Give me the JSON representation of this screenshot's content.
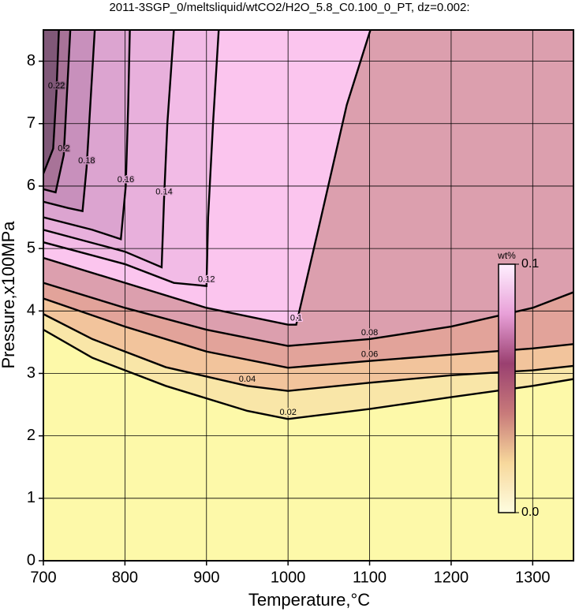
{
  "chart_data": {
    "type": "contour",
    "title": "2011-3SGP_0/meltsliquid/wtCO2/H2O_5.8_C0.100_0_PT, dz=0.002:",
    "xlabel": "Temperature,°C",
    "ylabel": "Pressure,x100MPa",
    "xlim": [
      700,
      1350
    ],
    "ylim": [
      0,
      8.5
    ],
    "xticks": [
      700,
      800,
      900,
      1000,
      1100,
      1200,
      1300
    ],
    "yticks": [
      0,
      1,
      2,
      3,
      4,
      5,
      6,
      7,
      8
    ],
    "grid": true,
    "base_color": "#fdf9a9",
    "contours": [
      {
        "level": 0.02,
        "fill": "#f9e6a8",
        "x": [
          700,
          760,
          800,
          850,
          900,
          950,
          1000,
          1050,
          1100,
          1200,
          1300,
          1350
        ],
        "y": [
          3.7,
          3.25,
          3.05,
          2.8,
          2.6,
          2.4,
          2.27,
          2.35,
          2.43,
          2.62,
          2.8,
          2.91
        ]
      },
      {
        "level": 0.04,
        "fill": "#f2c49c",
        "x": [
          700,
          760,
          800,
          850,
          900,
          950,
          1000,
          1100,
          1200,
          1300,
          1350
        ],
        "y": [
          3.95,
          3.55,
          3.35,
          3.1,
          2.95,
          2.8,
          2.72,
          2.85,
          2.97,
          3.05,
          3.12
        ]
      },
      {
        "level": 0.06,
        "fill": "#e2a39a",
        "x": [
          700,
          800,
          900,
          1000,
          1100,
          1200,
          1300,
          1350
        ],
        "y": [
          4.2,
          3.75,
          3.35,
          3.09,
          3.2,
          3.3,
          3.4,
          3.47
        ]
      },
      {
        "level": 0.08,
        "fill": "#dc9fae",
        "x": [
          700,
          800,
          900,
          1000,
          1100,
          1200,
          1300,
          1350
        ],
        "y": [
          4.45,
          4.05,
          3.7,
          3.44,
          3.55,
          3.75,
          4.05,
          4.3
        ]
      },
      {
        "level": 0.1,
        "fill": "#fbc5ee",
        "x": [
          700,
          800,
          900,
          1000,
          1010,
          1040,
          1072,
          1101
        ],
        "y": [
          4.85,
          4.45,
          4.05,
          3.78,
          3.78,
          5.47,
          7.3,
          8.5
        ]
      },
      {
        "level": 0.12,
        "fill": "#f2bbe6",
        "x": [
          700,
          800,
          860,
          900,
          902,
          908,
          915
        ],
        "y": [
          5.1,
          4.75,
          4.45,
          4.4,
          5.5,
          7.0,
          8.5
        ]
      },
      {
        "level": 0.14,
        "fill": "#e8b0dc",
        "x": [
          700,
          800,
          845,
          848,
          852,
          860
        ],
        "y": [
          5.3,
          4.95,
          4.7,
          5.8,
          7.0,
          8.5
        ]
      },
      {
        "level": 0.16,
        "fill": "#dca4d0",
        "x": [
          700,
          760,
          795,
          801,
          804,
          806
        ],
        "y": [
          5.5,
          5.3,
          5.15,
          6.0,
          7.3,
          8.5
        ]
      },
      {
        "level": 0.18,
        "fill": "#c890bc",
        "x": [
          700,
          730,
          748,
          753,
          758,
          763
        ],
        "y": [
          5.75,
          5.65,
          5.6,
          6.3,
          7.4,
          8.5
        ]
      },
      {
        "level": 0.2,
        "fill": "#a87398",
        "x": [
          700,
          715,
          725,
          729,
          733
        ],
        "y": [
          5.95,
          5.9,
          6.5,
          7.5,
          8.5
        ]
      },
      {
        "level": 0.22,
        "fill": "#805878",
        "x": [
          700,
          712,
          716,
          719
        ],
        "y": [
          6.2,
          6.6,
          7.5,
          8.5
        ]
      }
    ],
    "colorbar": {
      "label": "wt%",
      "lim": [
        0.0,
        0.1
      ],
      "ticks": [
        {
          "value": 0.0,
          "label": "0.0"
        },
        0.1
      ],
      "colormap": [
        "#fefde0",
        "#f7d89c",
        "#c87a7a",
        "#9a4070",
        "#e8a0d8",
        "#fff0ff"
      ]
    }
  }
}
